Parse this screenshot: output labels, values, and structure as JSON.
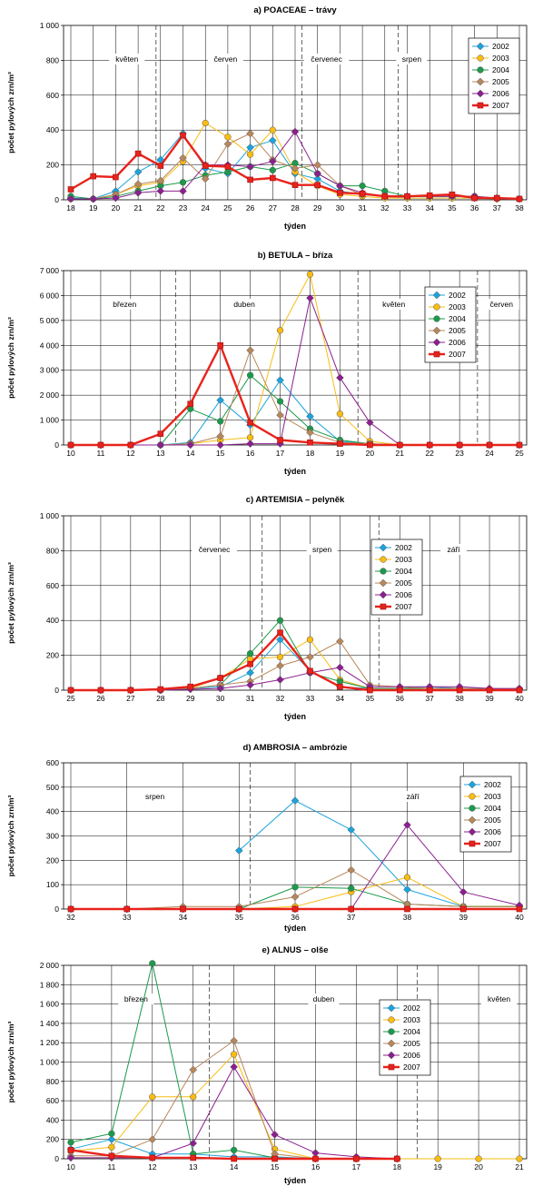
{
  "colors": {
    "2002": "#1ba3dd",
    "2003": "#f9bc12",
    "2004": "#1c9a4b",
    "2005": "#b8875b",
    "2006": "#8c1f8f",
    "2007": "#e8231c"
  },
  "chart_data": [
    {
      "type": "line",
      "title": "a) POACEAE – trávy",
      "xlabel": "týden",
      "ylabel": "počet pylových zrn/m³",
      "x": [
        18,
        19,
        20,
        21,
        22,
        23,
        24,
        25,
        26,
        27,
        28,
        29,
        30,
        31,
        32,
        33,
        34,
        35,
        36,
        37,
        38
      ],
      "xlim": [
        18,
        38
      ],
      "ylim": [
        0,
        1000
      ],
      "yticks": [
        0,
        200,
        400,
        600,
        800,
        1000
      ],
      "ytick_labels": [
        "0",
        "200",
        "400",
        "600",
        "800",
        "1 000"
      ],
      "grid": true,
      "legend": "top-right",
      "months": [
        {
          "label": "květen",
          "x": 20.5
        },
        {
          "label": "červen",
          "x": 24.9
        },
        {
          "label": "červenec",
          "x": 29.4
        },
        {
          "label": "srpen",
          "x": 33.2
        }
      ],
      "month_dividers": [
        21.8,
        28.3,
        32.6
      ],
      "series": [
        {
          "name": "2002",
          "values": [
            10,
            5,
            50,
            160,
            230,
            380,
            180,
            150,
            300,
            340,
            150,
            120,
            50,
            30,
            20,
            10,
            10,
            10,
            10,
            5,
            5
          ]
        },
        {
          "name": "2003",
          "values": [
            5,
            5,
            30,
            80,
            100,
            220,
            440,
            360,
            260,
            400,
            160,
            80,
            30,
            20,
            10,
            10,
            10,
            10,
            10,
            5,
            5
          ]
        },
        {
          "name": "2004",
          "values": [
            20,
            5,
            20,
            50,
            80,
            100,
            140,
            160,
            190,
            170,
            210,
            150,
            80,
            80,
            50,
            20,
            20,
            20,
            20,
            10,
            5
          ]
        },
        {
          "name": "2005",
          "values": [
            5,
            5,
            30,
            90,
            110,
            240,
            120,
            320,
            380,
            230,
            180,
            200,
            80,
            30,
            20,
            20,
            20,
            20,
            20,
            10,
            5
          ]
        },
        {
          "name": "2006",
          "values": [
            5,
            5,
            10,
            40,
            50,
            50,
            200,
            200,
            190,
            220,
            390,
            150,
            80,
            40,
            20,
            20,
            20,
            20,
            20,
            10,
            5
          ]
        },
        {
          "name": "2007",
          "values": [
            60,
            135,
            130,
            265,
            195,
            370,
            195,
            190,
            115,
            125,
            85,
            85,
            40,
            35,
            20,
            20,
            25,
            30,
            10,
            10,
            5
          ]
        }
      ]
    },
    {
      "type": "line",
      "title": "b) BETULA – bříza",
      "xlabel": "týden",
      "ylabel": "počet pylových zrn/m³",
      "x": [
        10,
        11,
        12,
        13,
        14,
        15,
        16,
        17,
        18,
        19,
        20,
        21,
        22,
        23,
        24,
        25
      ],
      "xlim": [
        10,
        25
      ],
      "ylim": [
        0,
        7000
      ],
      "yticks": [
        0,
        1000,
        2000,
        3000,
        4000,
        5000,
        6000,
        7000
      ],
      "ytick_labels": [
        "0",
        "1 000",
        "2 000",
        "3 000",
        "4 000",
        "5 000",
        "6 000",
        "7 000"
      ],
      "grid": true,
      "legend": "top-right",
      "months": [
        {
          "label": "březen",
          "x": 11.8
        },
        {
          "label": "duben",
          "x": 15.8
        },
        {
          "label": "květen",
          "x": 20.8
        },
        {
          "label": "červen",
          "x": 24.4
        }
      ],
      "month_dividers": [
        13.5,
        19.6,
        23.6
      ],
      "series": [
        {
          "name": "2002",
          "values": [
            0,
            0,
            0,
            0,
            100,
            1800,
            800,
            2600,
            1150,
            150,
            50,
            0,
            0,
            0,
            0,
            0
          ]
        },
        {
          "name": "2003",
          "values": [
            0,
            0,
            0,
            0,
            50,
            200,
            300,
            4600,
            6850,
            1250,
            150,
            0,
            0,
            0,
            0,
            0
          ]
        },
        {
          "name": "2004",
          "values": [
            0,
            0,
            0,
            0,
            1450,
            950,
            2800,
            1750,
            650,
            200,
            50,
            0,
            0,
            0,
            0,
            0
          ]
        },
        {
          "name": "2005",
          "values": [
            0,
            0,
            0,
            0,
            50,
            350,
            3800,
            1200,
            500,
            100,
            50,
            0,
            0,
            0,
            0,
            0
          ]
        },
        {
          "name": "2006",
          "values": [
            0,
            0,
            0,
            0,
            0,
            0,
            50,
            50,
            5900,
            2700,
            900,
            0,
            0,
            0,
            0,
            0
          ]
        },
        {
          "name": "2007",
          "values": [
            0,
            0,
            0,
            450,
            1650,
            4000,
            900,
            200,
            100,
            50,
            0,
            0,
            0,
            0,
            0,
            0
          ]
        }
      ]
    },
    {
      "type": "line",
      "title": "c) ARTEMISIA – pelyněk",
      "xlabel": "týden",
      "ylabel": "počet pylových zrn/m³",
      "x": [
        25,
        26,
        27,
        28,
        29,
        30,
        31,
        32,
        33,
        34,
        35,
        36,
        37,
        38,
        39,
        40
      ],
      "xlim": [
        25,
        40
      ],
      "ylim": [
        0,
        1000
      ],
      "yticks": [
        0,
        200,
        400,
        600,
        800,
        1000
      ],
      "ytick_labels": [
        "0",
        "200",
        "400",
        "600",
        "800",
        "1 000"
      ],
      "grid": true,
      "legend": "center",
      "months": [
        {
          "label": "červenec",
          "x": 29.8
        },
        {
          "label": "srpen",
          "x": 33.4
        },
        {
          "label": "září",
          "x": 37.8
        }
      ],
      "month_dividers": [
        31.4,
        35.3
      ],
      "series": [
        {
          "name": "2002",
          "values": [
            0,
            0,
            0,
            0,
            10,
            20,
            100,
            290,
            110,
            20,
            10,
            10,
            20,
            10,
            10,
            5
          ]
        },
        {
          "name": "2003",
          "values": [
            0,
            0,
            0,
            0,
            10,
            70,
            180,
            190,
            290,
            60,
            10,
            10,
            10,
            10,
            5,
            5
          ]
        },
        {
          "name": "2004",
          "values": [
            0,
            0,
            0,
            0,
            10,
            30,
            210,
            400,
            100,
            50,
            10,
            10,
            10,
            10,
            5,
            5
          ]
        },
        {
          "name": "2005",
          "values": [
            0,
            0,
            0,
            0,
            10,
            30,
            50,
            140,
            190,
            280,
            30,
            20,
            10,
            10,
            5,
            5
          ]
        },
        {
          "name": "2006",
          "values": [
            0,
            0,
            0,
            0,
            5,
            10,
            30,
            60,
            100,
            130,
            20,
            20,
            20,
            20,
            10,
            10
          ]
        },
        {
          "name": "2007",
          "values": [
            0,
            0,
            0,
            5,
            20,
            70,
            150,
            330,
            110,
            20,
            0,
            0,
            0,
            0,
            0,
            0
          ]
        }
      ]
    },
    {
      "type": "line",
      "title": "d) AMBROSIA – ambrózie",
      "xlabel": "týden",
      "ylabel": "počet pylových zrn/m³",
      "x": [
        32,
        33,
        34,
        35,
        36,
        37,
        38,
        39,
        40
      ],
      "xlim": [
        32,
        40
      ],
      "ylim": [
        0,
        600
      ],
      "yticks": [
        0,
        100,
        200,
        300,
        400,
        500,
        600
      ],
      "ytick_labels": [
        "0",
        "100",
        "200",
        "300",
        "400",
        "500",
        "600"
      ],
      "grid": true,
      "legend": "top-right",
      "months": [
        {
          "label": "srpen",
          "x": 33.5
        },
        {
          "label": "září",
          "x": 38.1
        }
      ],
      "month_dividers": [
        35.2
      ],
      "series": [
        {
          "name": "2002",
          "values": [
            null,
            null,
            null,
            240,
            445,
            325,
            80,
            10,
            10
          ]
        },
        {
          "name": "2003",
          "values": [
            0,
            0,
            0,
            0,
            10,
            70,
            130,
            10,
            10
          ]
        },
        {
          "name": "2004",
          "values": [
            0,
            0,
            0,
            0,
            90,
            85,
            20,
            10,
            10
          ]
        },
        {
          "name": "2005",
          "values": [
            0,
            0,
            10,
            10,
            50,
            160,
            20,
            10,
            10
          ]
        },
        {
          "name": "2006",
          "values": [
            0,
            0,
            0,
            0,
            0,
            0,
            345,
            70,
            15
          ]
        },
        {
          "name": "2007",
          "values": [
            0,
            0,
            0,
            0,
            0,
            0,
            0,
            0,
            0
          ]
        }
      ]
    },
    {
      "type": "line",
      "title": "e) ALNUS – olše",
      "xlabel": "týden",
      "ylabel": "počet pylových zrn/m³",
      "x": [
        10,
        11,
        12,
        13,
        14,
        15,
        16,
        17,
        18,
        19,
        20,
        21
      ],
      "xlim": [
        10,
        21
      ],
      "ylim": [
        0,
        2000
      ],
      "yticks": [
        0,
        200,
        400,
        600,
        800,
        1000,
        1200,
        1400,
        1600,
        1800,
        2000
      ],
      "ytick_labels": [
        "0",
        "200",
        "400",
        "600",
        "800",
        "1 000",
        "1 200",
        "1 400",
        "1 600",
        "1 800",
        "2 000"
      ],
      "grid": true,
      "legend": "center-right",
      "months": [
        {
          "label": "březen",
          "x": 11.6
        },
        {
          "label": "duben",
          "x": 16.2
        },
        {
          "label": "květen",
          "x": 20.5
        }
      ],
      "month_dividers": [
        13.4,
        18.5
      ],
      "series": [
        {
          "name": "2002",
          "values": [
            100,
            200,
            50,
            50,
            20,
            20,
            0,
            0,
            0,
            null,
            null,
            null
          ]
        },
        {
          "name": "2003",
          "values": [
            80,
            120,
            640,
            640,
            1080,
            100,
            0,
            0,
            0,
            0,
            0,
            0
          ]
        },
        {
          "name": "2004",
          "values": [
            170,
            260,
            2020,
            50,
            90,
            10,
            0,
            0,
            0,
            null,
            null,
            null
          ]
        },
        {
          "name": "2005",
          "values": [
            30,
            30,
            200,
            920,
            1220,
            50,
            0,
            0,
            0,
            null,
            null,
            null
          ]
        },
        {
          "name": "2006",
          "values": [
            10,
            10,
            10,
            160,
            950,
            250,
            60,
            20,
            0,
            null,
            null,
            null
          ]
        },
        {
          "name": "2007",
          "values": [
            90,
            30,
            10,
            10,
            0,
            0,
            0,
            0,
            0,
            null,
            null,
            null
          ]
        }
      ]
    }
  ]
}
